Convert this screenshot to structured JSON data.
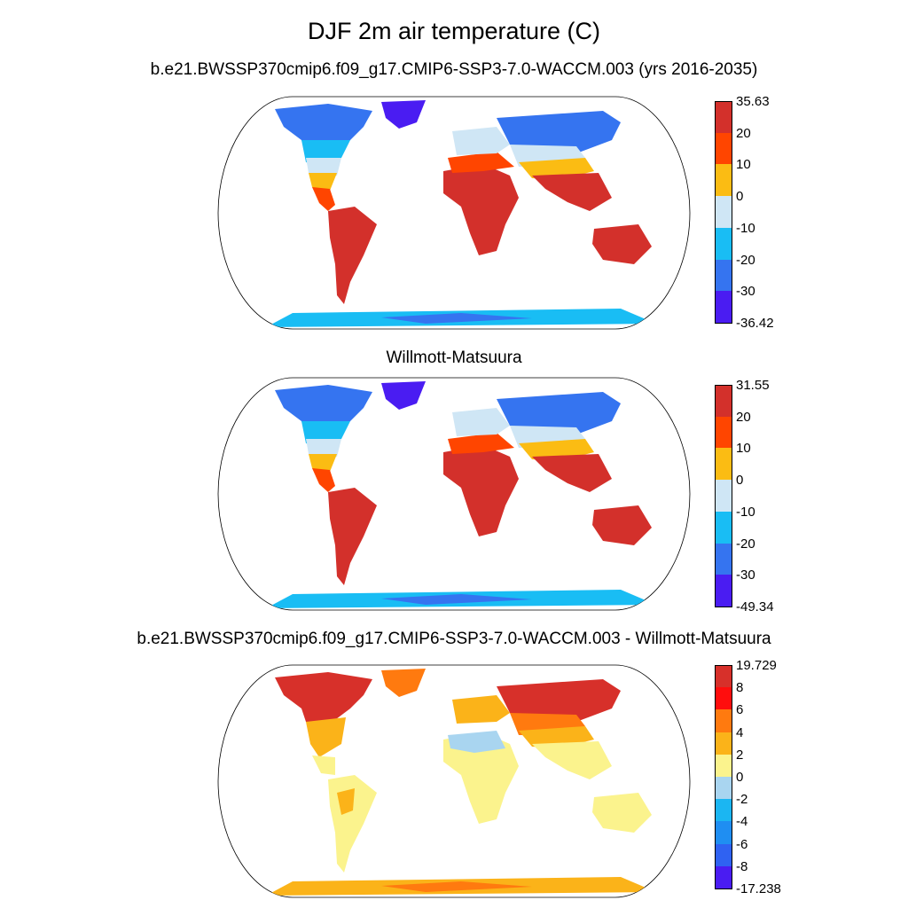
{
  "title": "DJF 2m air temperature (C)",
  "panels": [
    {
      "subtitle": "b.e21.BWSSP370cmip6.f09_g17.CMIP6-SSP3-7.0-WACCM.003 (yrs 2016-2035)",
      "colorbar": {
        "labels": [
          "35.63",
          "20",
          "10",
          "0",
          "-10",
          "-20",
          "-30",
          "-36.42"
        ],
        "colors": [
          "#d3302b",
          "#ff4500",
          "#fbbc13",
          "#cfe6f5",
          "#19bdf4",
          "#3574f0",
          "#4a1cf2"
        ]
      }
    },
    {
      "subtitle": "Willmott-Matsuura",
      "colorbar": {
        "labels": [
          "31.55",
          "20",
          "10",
          "0",
          "-10",
          "-20",
          "-30",
          "-49.34"
        ],
        "colors": [
          "#d3302b",
          "#ff4500",
          "#fbbc13",
          "#cfe6f5",
          "#19bdf4",
          "#3574f0",
          "#4a1cf2"
        ]
      }
    },
    {
      "subtitle": "b.e21.BWSSP370cmip6.f09_g17.CMIP6-SSP3-7.0-WACCM.003 - Willmott-Matsuura",
      "colorbar": {
        "labels": [
          "19.729",
          "8",
          "6",
          "4",
          "2",
          "0",
          "-2",
          "-4",
          "-6",
          "-8",
          "-17.238"
        ],
        "colors": [
          "#d7302a",
          "#ff0d0d",
          "#ff7a0f",
          "#fbb319",
          "#fbf38d",
          "#a9d5f0",
          "#1bb6f2",
          "#1f8ef2",
          "#2f62f2",
          "#4a1cf2"
        ]
      }
    }
  ]
}
